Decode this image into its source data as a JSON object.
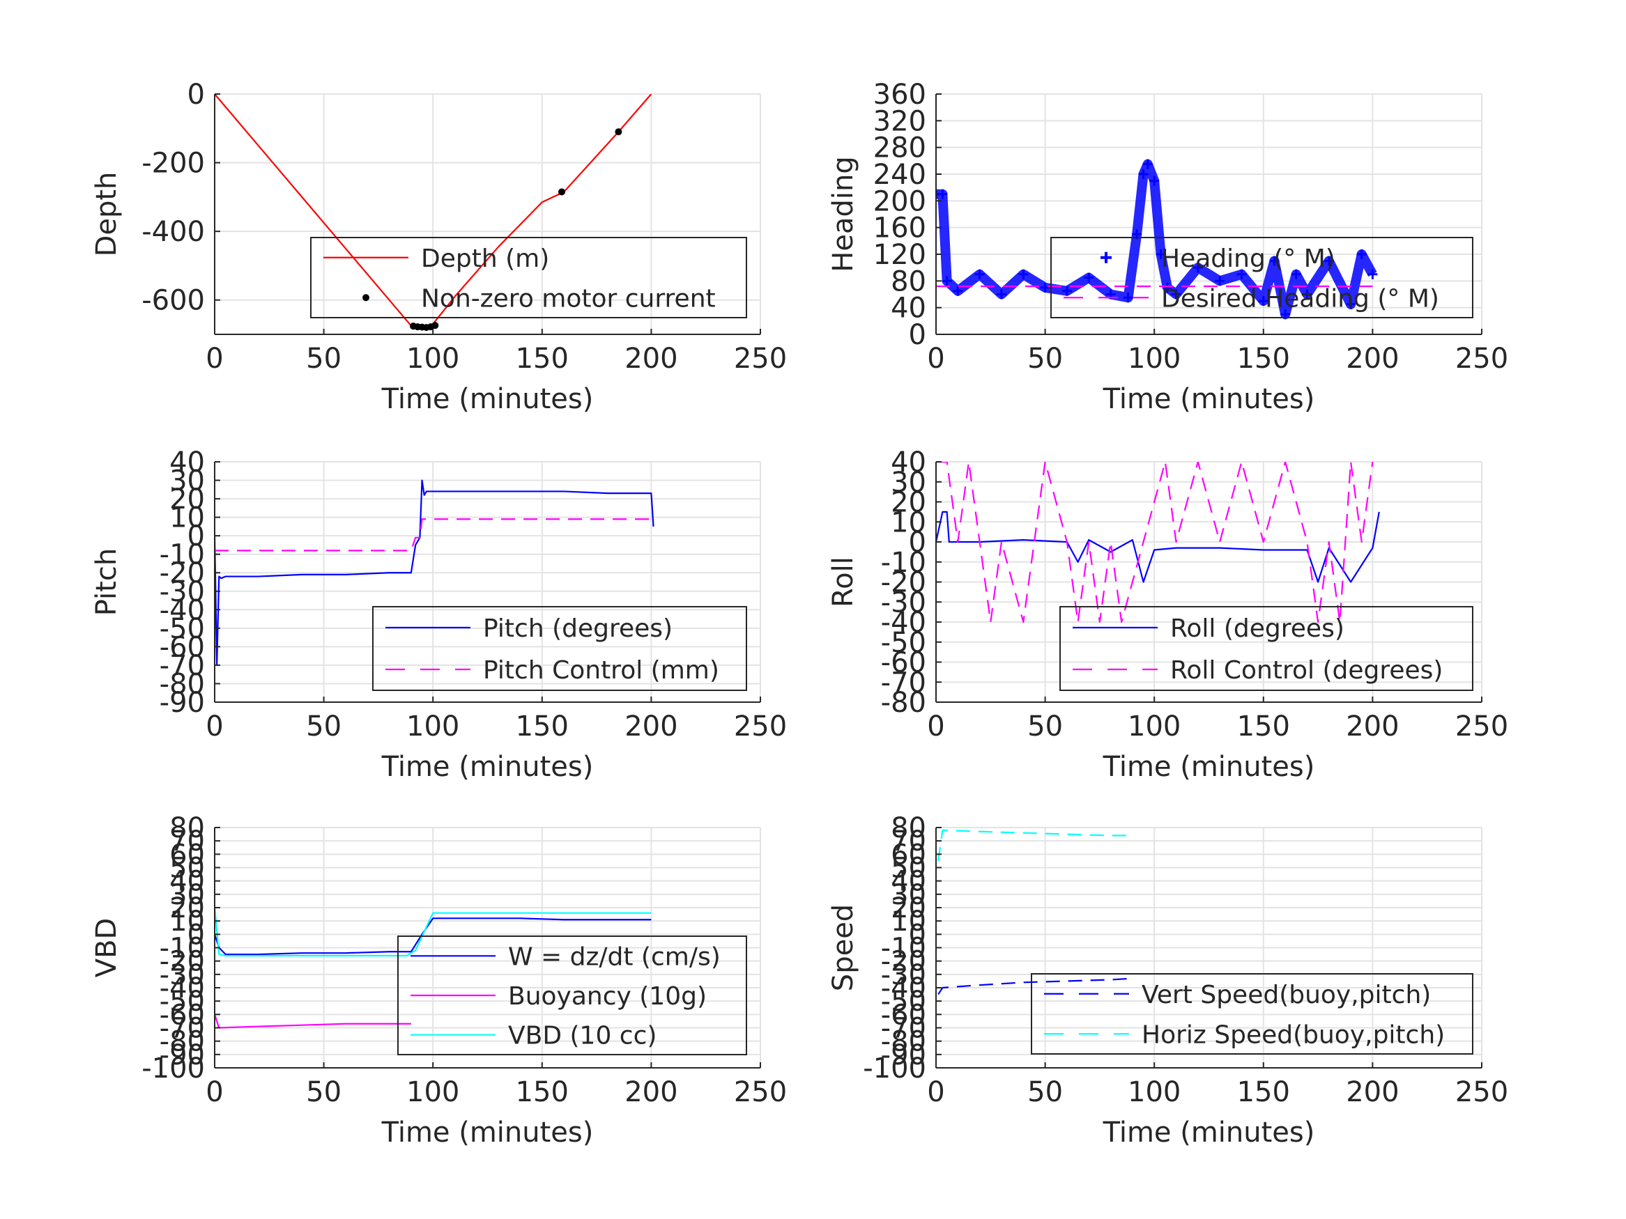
{
  "chart_data": [
    {
      "type": "line",
      "panel": "depth",
      "xlabel": "Time (minutes)",
      "ylabel": "Depth",
      "xlim": [
        0,
        250
      ],
      "ylim": [
        -700,
        0
      ],
      "xticks": [
        "0",
        "50",
        "100",
        "150",
        "200",
        "250"
      ],
      "yticks": [
        "0",
        "-200",
        "-400",
        "-600"
      ],
      "ytick_values": [
        0,
        -200,
        -400,
        -600
      ],
      "grid": true,
      "legend_position": "bottom-right",
      "series": [
        {
          "name": "Depth (m)",
          "style": "solid",
          "color": "#ff0000",
          "x": [
            0,
            20,
            40,
            60,
            80,
            90,
            95,
            100,
            110,
            130,
            150,
            160,
            170,
            185,
            200
          ],
          "y": [
            0,
            -150,
            -300,
            -450,
            -600,
            -675,
            -678,
            -670,
            -590,
            -445,
            -315,
            -285,
            -215,
            -110,
            0
          ]
        },
        {
          "name": "Non-zero motor current",
          "style": "points",
          "color": "#000000",
          "x": [
            91,
            93,
            95,
            97,
            99,
            101,
            159,
            185
          ],
          "y": [
            -676,
            -678,
            -679,
            -680,
            -678,
            -674,
            -285,
            -110
          ]
        }
      ]
    },
    {
      "type": "line",
      "panel": "heading",
      "xlabel": "Time (minutes)",
      "ylabel": "Heading",
      "xlim": [
        0,
        250
      ],
      "ylim": [
        0,
        360
      ],
      "xticks": [
        "0",
        "50",
        "100",
        "150",
        "200",
        "250"
      ],
      "yticks": [
        "0",
        "40",
        "80",
        "120",
        "160",
        "200",
        "240",
        "280",
        "320",
        "360"
      ],
      "ytick_values": [
        0,
        40,
        80,
        120,
        160,
        200,
        240,
        280,
        320,
        360
      ],
      "grid": true,
      "legend_position": "bottom-right",
      "series": [
        {
          "name": "Heading (° M)",
          "style": "plus",
          "color": "#0000ff",
          "x": [
            0,
            3,
            5,
            10,
            20,
            30,
            40,
            50,
            60,
            70,
            80,
            88,
            92,
            95,
            97,
            100,
            103,
            106,
            110,
            120,
            130,
            140,
            150,
            155,
            160,
            165,
            170,
            180,
            190,
            195,
            200
          ],
          "y": [
            210,
            210,
            80,
            65,
            90,
            60,
            90,
            70,
            65,
            85,
            60,
            55,
            150,
            240,
            255,
            230,
            120,
            70,
            60,
            100,
            80,
            90,
            50,
            110,
            30,
            90,
            60,
            110,
            45,
            120,
            90
          ]
        },
        {
          "name": "Desired Heading (° M)",
          "style": "dashed",
          "color": "#ff00ff",
          "x": [
            0,
            200
          ],
          "y": [
            72,
            72
          ]
        }
      ]
    },
    {
      "type": "line",
      "panel": "pitch",
      "xlabel": "Time (minutes)",
      "ylabel": "Pitch",
      "xlim": [
        0,
        250
      ],
      "ylim": [
        -90,
        40
      ],
      "xticks": [
        "0",
        "50",
        "100",
        "150",
        "200",
        "250"
      ],
      "yticks": [
        "40",
        "30",
        "20",
        "10",
        "0",
        "-10",
        "-20",
        "-30",
        "-40",
        "-50",
        "-60",
        "-70",
        "-80",
        "-90"
      ],
      "ytick_values": [
        40,
        30,
        20,
        10,
        0,
        -10,
        -20,
        -30,
        -40,
        -50,
        -60,
        -70,
        -80,
        -90
      ],
      "grid": true,
      "legend_position": "bottom-right",
      "series": [
        {
          "name": "Pitch (degrees)",
          "style": "solid",
          "color": "#0000ff",
          "x": [
            0,
            1,
            2,
            3,
            5,
            20,
            40,
            60,
            80,
            90,
            92,
            94,
            95,
            96,
            97,
            100,
            120,
            140,
            160,
            180,
            200,
            201
          ],
          "y": [
            0,
            -70,
            -22,
            -23,
            -22,
            -22,
            -21,
            -21,
            -20,
            -20,
            -5,
            -1,
            30,
            22,
            24,
            24,
            24,
            24,
            24,
            23,
            23,
            5
          ]
        },
        {
          "name": "Pitch Control (mm)",
          "style": "dashed",
          "color": "#ff00ff",
          "x": [
            0,
            90,
            92,
            94,
            95,
            96,
            200
          ],
          "y": [
            -8,
            -8,
            -1,
            -1,
            9,
            9,
            9
          ]
        }
      ]
    },
    {
      "type": "line",
      "panel": "roll",
      "xlabel": "Time (minutes)",
      "ylabel": "Roll",
      "xlim": [
        0,
        250
      ],
      "ylim": [
        -80,
        40
      ],
      "xticks": [
        "0",
        "50",
        "100",
        "150",
        "200",
        "250"
      ],
      "yticks": [
        "40",
        "30",
        "20",
        "10",
        "0",
        "-10",
        "-20",
        "-30",
        "-40",
        "-50",
        "-60",
        "-70",
        "-80"
      ],
      "ytick_values": [
        40,
        30,
        20,
        10,
        0,
        -10,
        -20,
        -30,
        -40,
        -50,
        -60,
        -70,
        -80
      ],
      "grid": true,
      "legend_position": "bottom-right",
      "series": [
        {
          "name": "Roll (degrees)",
          "style": "solid",
          "color": "#0000ff",
          "x": [
            0,
            3,
            5,
            6,
            20,
            40,
            60,
            65,
            70,
            80,
            90,
            95,
            100,
            110,
            130,
            150,
            170,
            175,
            180,
            190,
            200,
            203
          ],
          "y": [
            0,
            15,
            15,
            0,
            0,
            1,
            0,
            -10,
            1,
            -5,
            1,
            -20,
            -4,
            -3,
            -3,
            -4,
            -4,
            -20,
            -3,
            -20,
            -3,
            15
          ]
        },
        {
          "name": "Roll Control (degrees)",
          "style": "dashed",
          "color": "#ff00ff",
          "x": [
            0,
            5,
            10,
            15,
            20,
            25,
            30,
            40,
            50,
            60,
            65,
            70,
            75,
            80,
            85,
            95,
            105,
            110,
            120,
            130,
            140,
            150,
            160,
            170,
            175,
            180,
            185,
            190,
            195,
            200
          ],
          "y": [
            40,
            40,
            0,
            40,
            0,
            -40,
            0,
            -40,
            40,
            0,
            -40,
            0,
            -40,
            0,
            -40,
            0,
            40,
            0,
            40,
            0,
            40,
            0,
            40,
            0,
            -40,
            0,
            -40,
            40,
            0,
            40
          ]
        }
      ]
    },
    {
      "type": "line",
      "panel": "vbd",
      "xlabel": "Time (minutes)",
      "ylabel": "VBD",
      "xlim": [
        0,
        250
      ],
      "ylim": [
        -100,
        80
      ],
      "xticks": [
        "0",
        "50",
        "100",
        "150",
        "200",
        "250"
      ],
      "yticks": [
        "80",
        "70",
        "60",
        "50",
        "40",
        "30",
        "20",
        "10",
        "0",
        "-10",
        "-20",
        "-30",
        "-40",
        "-50",
        "-60",
        "-70",
        "-80",
        "-90",
        "-100"
      ],
      "ytick_values": [
        80,
        70,
        60,
        50,
        40,
        30,
        20,
        10,
        0,
        -10,
        -20,
        -30,
        -40,
        -50,
        -60,
        -70,
        -80,
        -90,
        -100
      ],
      "grid": true,
      "legend_position": "bottom-right",
      "series": [
        {
          "name": "W = dz/dt (cm/s)",
          "style": "solid",
          "color": "#0000ff",
          "x": [
            0,
            2,
            5,
            20,
            40,
            60,
            80,
            90,
            95,
            100,
            120,
            140,
            160,
            180,
            200
          ],
          "y": [
            0,
            -10,
            -15,
            -15,
            -14,
            -14,
            -13,
            -13,
            0,
            12,
            12,
            12,
            11,
            11,
            11
          ]
        },
        {
          "name": "Buoyancy (10g)",
          "style": "solid",
          "color": "#ff00ff",
          "x": [
            0,
            2,
            20,
            40,
            60,
            80,
            90
          ],
          "y": [
            -60,
            -70,
            -69,
            -68,
            -67,
            -67,
            -67
          ]
        },
        {
          "name": "VBD (10 cc)",
          "style": "solid",
          "color": "#00ffff",
          "x": [
            0,
            2,
            5,
            88,
            92,
            100,
            200
          ],
          "y": [
            20,
            -15,
            -16,
            -16,
            -12,
            16,
            16
          ]
        }
      ]
    },
    {
      "type": "line",
      "panel": "speed",
      "xlabel": "Time (minutes)",
      "ylabel": "Speed",
      "xlim": [
        0,
        250
      ],
      "ylim": [
        -100,
        80
      ],
      "xticks": [
        "0",
        "50",
        "100",
        "150",
        "200",
        "250"
      ],
      "yticks": [
        "80",
        "70",
        "60",
        "50",
        "40",
        "30",
        "20",
        "10",
        "0",
        "-10",
        "-20",
        "-30",
        "-40",
        "-50",
        "-60",
        "-70",
        "-80",
        "-90",
        "-100"
      ],
      "ytick_values": [
        80,
        70,
        60,
        50,
        40,
        30,
        20,
        10,
        0,
        -10,
        -20,
        -30,
        -40,
        -50,
        -60,
        -70,
        -80,
        -90,
        -100
      ],
      "grid": true,
      "legend_position": "bottom-right",
      "series": [
        {
          "name": "Vert Speed(buoy,pitch)",
          "style": "dashed",
          "color": "#0000ff",
          "x": [
            1,
            3,
            20,
            40,
            60,
            80,
            90
          ],
          "y": [
            -45,
            -40,
            -38,
            -36,
            -35,
            -34,
            -33
          ]
        },
        {
          "name": "Horiz Speed(buoy,pitch)",
          "style": "dashed",
          "color": "#00ffff",
          "x": [
            1,
            3,
            20,
            40,
            60,
            80,
            90
          ],
          "y": [
            55,
            78,
            77,
            76,
            75,
            74,
            74
          ]
        }
      ]
    }
  ]
}
